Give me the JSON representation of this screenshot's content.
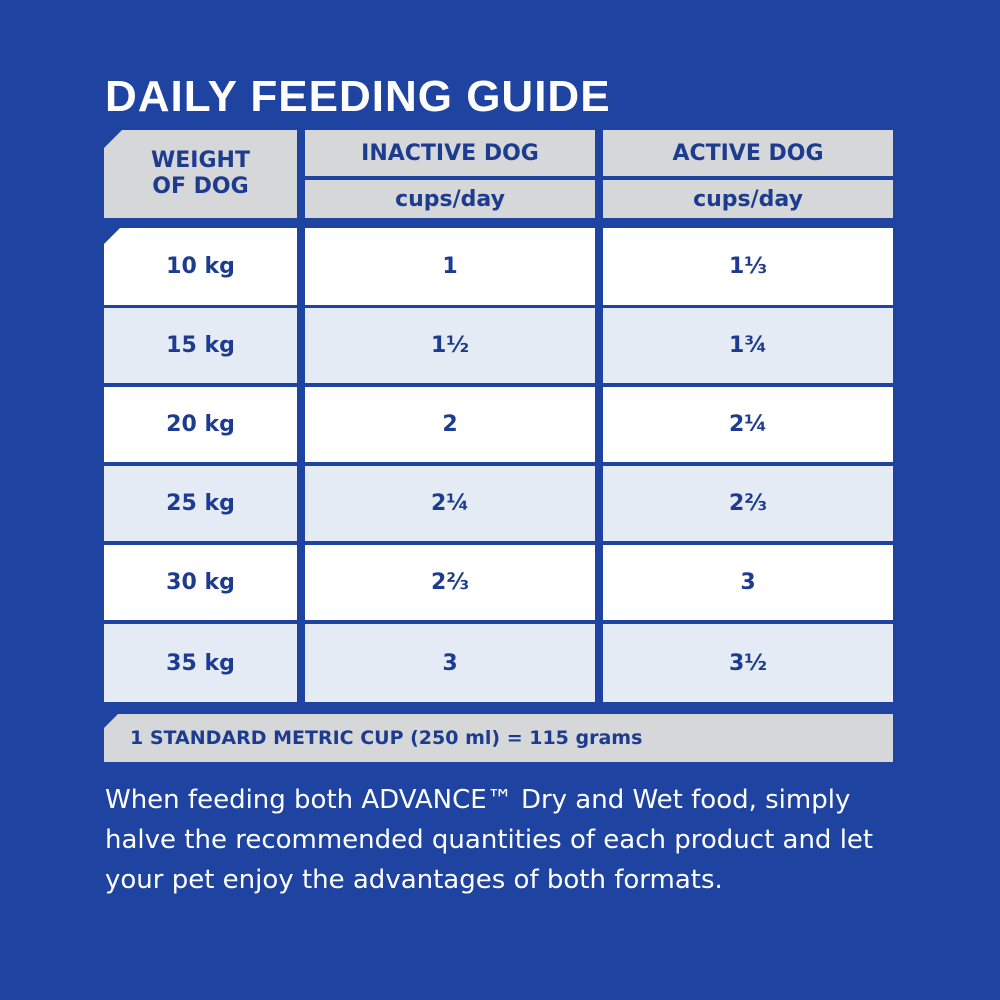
{
  "header": {
    "title": "DAILY FEEDING GUIDE"
  },
  "table": {
    "columns": [
      {
        "label": "WEIGHT OF DOG"
      },
      {
        "label": "INACTIVE DOG",
        "unit": "cups/day"
      },
      {
        "label": "ACTIVE DOG",
        "unit": "cups/day"
      }
    ],
    "rows": [
      [
        "10 kg",
        "1",
        "1⅓"
      ],
      [
        "15 kg",
        "1½",
        "1¾"
      ],
      [
        "20 kg",
        "2",
        "2¼"
      ],
      [
        "25 kg",
        "2¼",
        "2⅔"
      ],
      [
        "30 kg",
        "2⅔",
        "3"
      ],
      [
        "35 kg",
        "3",
        "3½"
      ]
    ]
  },
  "footnote": "1 STANDARD METRIC CUP (250 ml) = 115 grams",
  "note": "When feeding both ADVANCE™ Dry and Wet food, simply halve the recommended quantities of each product and let your pet enjoy the advantages of both formats."
}
